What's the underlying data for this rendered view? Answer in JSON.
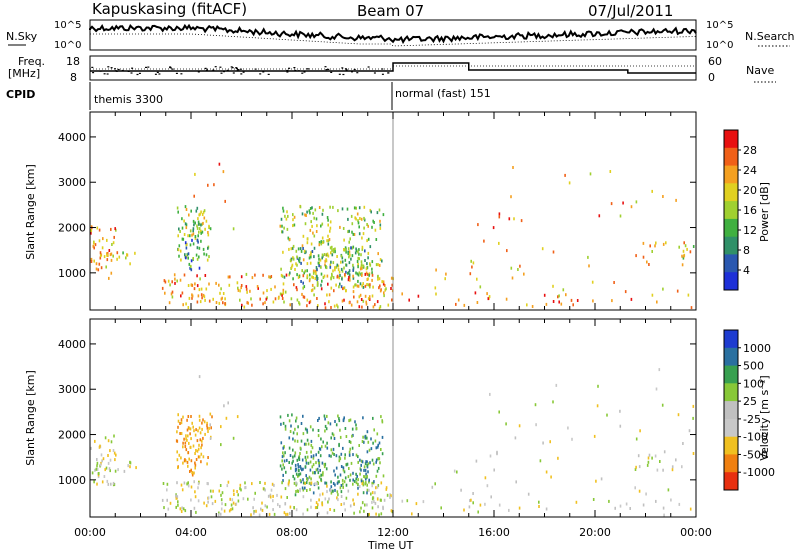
{
  "header": {
    "station": "Kapuskasing (fitACF)",
    "beam": "Beam 07",
    "date": "07/Jul/2011"
  },
  "top_panels": {
    "nsky_label": "N.Sky",
    "nsearch_label": "N.Search",
    "noise_ticks_left": [
      "10^5",
      "10^0"
    ],
    "noise_ticks_right": [
      "10^5",
      "10^0"
    ],
    "freq_label": "Freq.",
    "freq_unit": "[MHz]",
    "freq_ticks": [
      "18",
      "8"
    ],
    "nave_label": "Nave",
    "nave_ticks": [
      "60",
      "0"
    ],
    "cpid_label": "CPID",
    "cpid_segments": [
      {
        "start_hour": 0,
        "end_hour": 12,
        "name": "themis 3300"
      },
      {
        "start_hour": 12,
        "end_hour": 24,
        "name": "normal (fast) 151"
      }
    ]
  },
  "chart_data": [
    {
      "type": "heatmap",
      "name": "power",
      "ylabel": "Slant Range [km]",
      "xlabel": "Time UT",
      "x_ticks": [
        "00:00",
        "04:00",
        "08:00",
        "12:00",
        "16:00",
        "20:00",
        "00:00"
      ],
      "x_range_hours": [
        0,
        24
      ],
      "y_ticks": [
        1000,
        2000,
        3000,
        4000
      ],
      "y_range_km": [
        180,
        4550
      ],
      "colorbar": {
        "label": "Power [dB]",
        "ticks": [
          "28",
          "24",
          "20",
          "16",
          "12",
          "8",
          "4"
        ],
        "colors": [
          "#e81010",
          "#f06018",
          "#f4a020",
          "#e0d020",
          "#a0d030",
          "#40b040",
          "#309068",
          "#2a58b0",
          "#1e30d8"
        ]
      }
    },
    {
      "type": "heatmap",
      "name": "velocity",
      "ylabel": "Slant Range [km]",
      "xlabel": "Time UT",
      "x_ticks": [
        "00:00",
        "04:00",
        "08:00",
        "12:00",
        "16:00",
        "20:00",
        "00:00"
      ],
      "x_range_hours": [
        0,
        24
      ],
      "y_ticks": [
        1000,
        2000,
        3000,
        4000
      ],
      "y_range_km": [
        180,
        4550
      ],
      "colorbar": {
        "label": "Velocity [m s⁻¹]",
        "ticks": [
          "1000",
          "500",
          "100",
          "25",
          "-25",
          "-100",
          "-500",
          "-1000"
        ],
        "colors": [
          "#1e3cd0",
          "#2a70a0",
          "#38a050",
          "#88c838",
          "#c0c0c0",
          "#c8c8c8",
          "#f0c020",
          "#f08010",
          "#e83010"
        ]
      }
    }
  ]
}
